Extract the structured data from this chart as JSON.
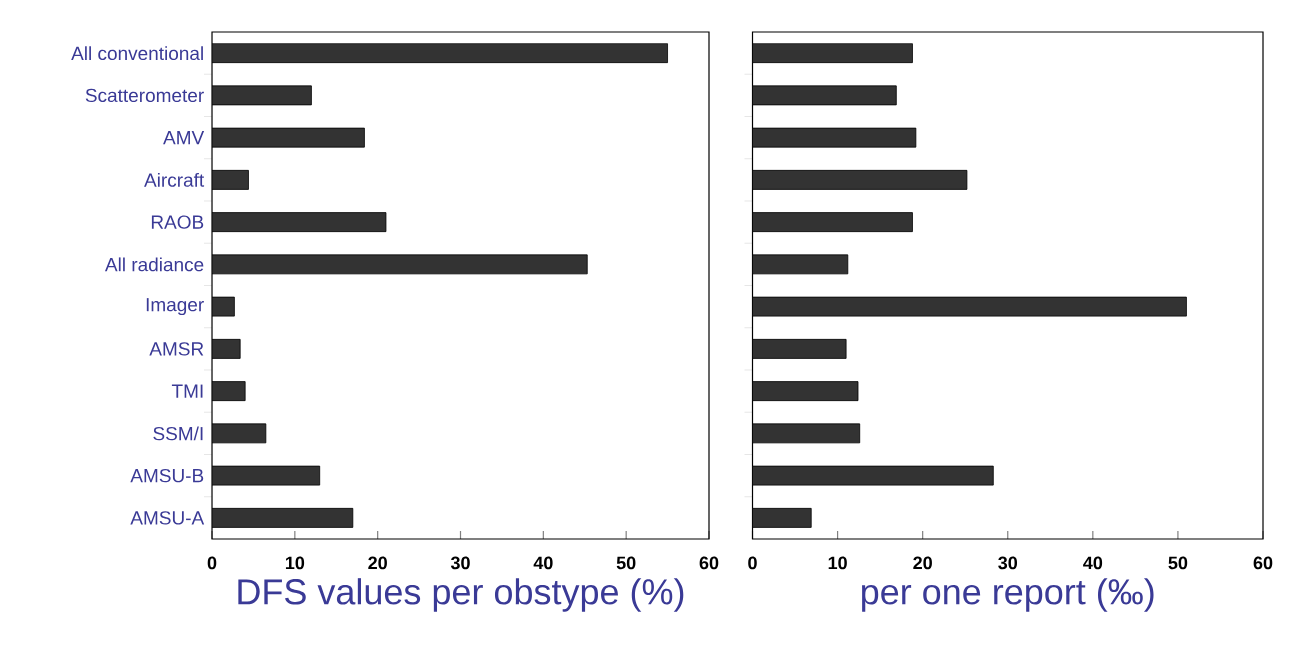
{
  "chart_data": [
    {
      "type": "bar",
      "orientation": "horizontal",
      "categories": [
        "All conventional",
        "Scatterometer",
        "AMV",
        "Aircraft",
        "RAOB",
        "All radiance",
        "Imager",
        "AMSR",
        "TMI",
        "SSM/I",
        "AMSU-B",
        "AMSU-A"
      ],
      "values": [
        55,
        12,
        18.4,
        4.4,
        21,
        45.3,
        2.7,
        3.4,
        4,
        6.5,
        13,
        17
      ],
      "color": "#333333",
      "xlim": [
        0,
        60
      ],
      "xticks": [
        0,
        10,
        20,
        30,
        40,
        50,
        60
      ],
      "xlabel": "DFS values per obstype (%)"
    },
    {
      "type": "bar",
      "orientation": "horizontal",
      "categories": [
        null,
        null,
        null,
        null,
        null,
        null,
        null,
        null,
        null,
        null,
        null,
        null
      ],
      "values": [
        18.8,
        16.9,
        19.2,
        25.2,
        18.8,
        11.2,
        51,
        11,
        12.4,
        12.6,
        28.3,
        6.9
      ],
      "color": "#333333",
      "xlim": [
        0,
        60
      ],
      "xticks": [
        0,
        10,
        20,
        30,
        40,
        50,
        60
      ],
      "xlabel": "per one report (‰)"
    }
  ]
}
